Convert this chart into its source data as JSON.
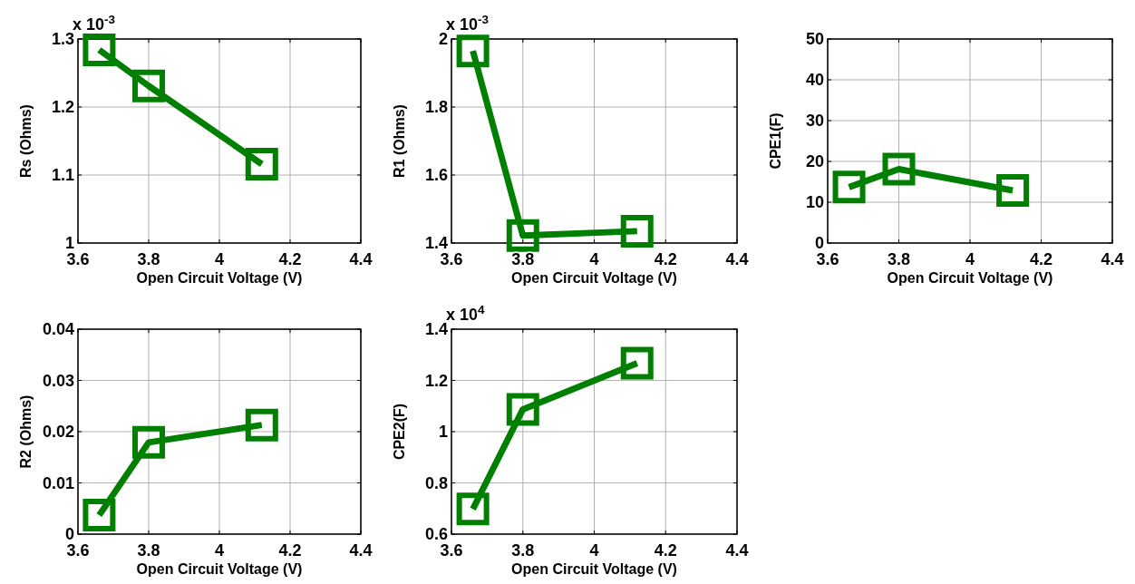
{
  "chart_data": [
    {
      "type": "line",
      "x": [
        3.66,
        3.8,
        4.12
      ],
      "series": [
        {
          "color": "#007f00",
          "values": [
            1.284,
            1.231,
            1.116
          ]
        }
      ],
      "xlim": [
        3.6,
        4.4
      ],
      "xticks": [
        3.6,
        3.8,
        4,
        4.2,
        4.4
      ],
      "ylim": [
        1,
        1.3
      ],
      "yticks": [
        1,
        1.1,
        1.2,
        1.3
      ],
      "xlabel": "Open Circuit Voltage (V)",
      "ylabel": "Rs (Ohms)",
      "annotations": [
        "x 10$^{-3}$"
      ],
      "grid": true,
      "marker": "square",
      "line_style": "solid"
    },
    {
      "type": "line",
      "x": [
        3.66,
        3.8,
        4.12
      ],
      "series": [
        {
          "color": "#007f00",
          "values": [
            1.965,
            1.422,
            1.435
          ]
        }
      ],
      "xlim": [
        3.6,
        4.4
      ],
      "xticks": [
        3.6,
        3.8,
        4,
        4.2,
        4.4
      ],
      "ylim": [
        1.4,
        2
      ],
      "yticks": [
        1.4,
        1.6,
        1.8,
        2
      ],
      "xlabel": "Open Circuit Voltage (V)",
      "ylabel": "R1 (Ohms)",
      "annotations": [
        "x 10$^{-3}$"
      ],
      "grid": true,
      "marker": "square",
      "line_style": "solid"
    },
    {
      "type": "line",
      "x": [
        3.66,
        3.8,
        4.12
      ],
      "series": [
        {
          "color": "#007f00",
          "values": [
            13.7,
            18.1,
            12.9
          ]
        }
      ],
      "xlim": [
        3.6,
        4.4
      ],
      "xticks": [
        3.6,
        3.8,
        4,
        4.2,
        4.4
      ],
      "ylim": [
        0,
        50
      ],
      "yticks": [
        0,
        10,
        20,
        30,
        40,
        50
      ],
      "xlabel": "Open Circuit Voltage (V)",
      "ylabel": "CPE1(F)",
      "grid": true,
      "marker": "square",
      "line_style": "solid"
    },
    {
      "type": "line",
      "x": [
        3.66,
        3.8,
        4.12
      ],
      "series": [
        {
          "color": "#007f00",
          "values": [
            0.0037,
            0.0179,
            0.0213
          ]
        }
      ],
      "xlim": [
        3.6,
        4.4
      ],
      "xticks": [
        3.6,
        3.8,
        4,
        4.2,
        4.4
      ],
      "ylim": [
        0,
        0.04
      ],
      "yticks": [
        0,
        0.01,
        0.02,
        0.03,
        0.04
      ],
      "xlabel": "Open Circuit Voltage (V)",
      "ylabel": "R2 (Ohms)",
      "grid": true,
      "marker": "square",
      "line_style": "solid"
    },
    {
      "type": "line",
      "x": [
        3.66,
        3.8,
        4.12
      ],
      "series": [
        {
          "color": "#007f00",
          "values": [
            0.698,
            1.087,
            1.267
          ]
        }
      ],
      "xlim": [
        3.6,
        4.4
      ],
      "xticks": [
        3.6,
        3.8,
        4,
        4.2,
        4.4
      ],
      "ylim": [
        0.6,
        1.4
      ],
      "yticks": [
        0.6,
        0.8,
        1,
        1.2,
        1.4
      ],
      "xlabel": "Open Circuit Voltage (V)",
      "ylabel": "CPE2(F)",
      "annotations": [
        "x 10$^{4}$"
      ],
      "grid": true,
      "marker": "square",
      "line_style": "solid"
    }
  ]
}
